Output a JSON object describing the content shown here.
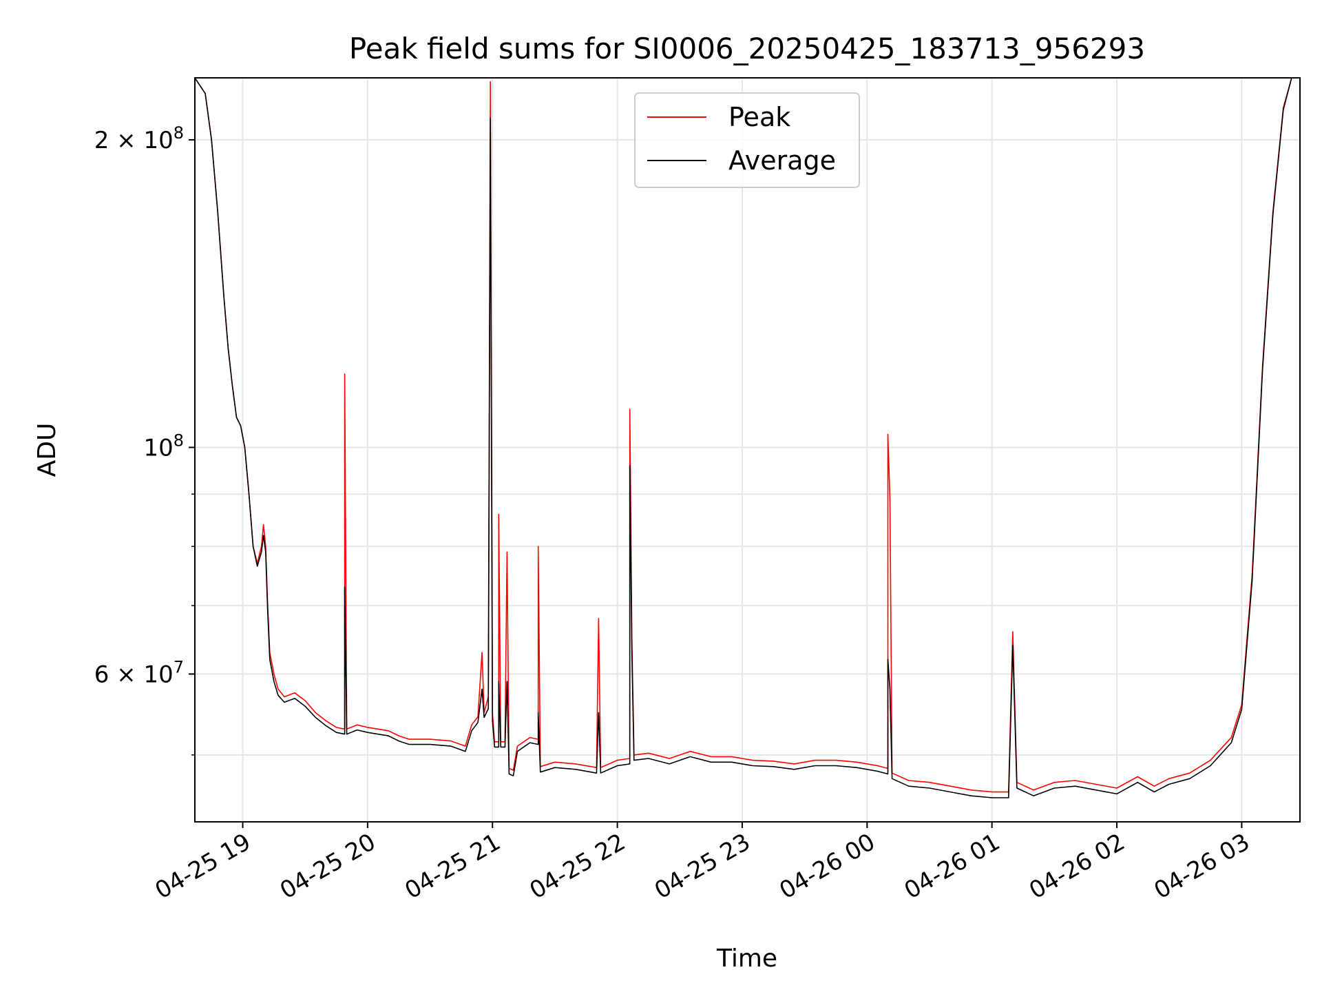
{
  "chart_data": {
    "type": "line",
    "title": "Peak field sums for SI0006_20250425_183713_956293",
    "xlabel": "Time",
    "ylabel": "ADU",
    "x_ticks": [
      "04-25 19",
      "04-25 20",
      "04-25 21",
      "04-25 22",
      "04-25 23",
      "04-26 00",
      "04-26 01",
      "04-26 02",
      "04-26 03"
    ],
    "y_tick_labels": [
      "6 × 10^7",
      "10^8",
      "2 × 10^8"
    ],
    "y_tick_parts": [
      {
        "value": 60000000,
        "mantissa": "6 × ",
        "base": "10",
        "exp": "7"
      },
      {
        "value": 100000000,
        "mantissa": "",
        "base": "10",
        "exp": "8"
      },
      {
        "value": 200000000,
        "mantissa": "2 × ",
        "base": "10",
        "exp": "8"
      }
    ],
    "y_scale": "log",
    "xlim": [
      "2025-04-25 18:37",
      "2025-04-26 03:28"
    ],
    "ylim": [
      43000000,
      230000000
    ],
    "grid": true,
    "legend_position": "top-center",
    "series": [
      {
        "name": "Peak",
        "color": "#ff0000",
        "points": [
          [
            "2025-04-25 18:37",
            230000000
          ],
          [
            "2025-04-25 18:42",
            222000000
          ],
          [
            "2025-04-25 18:45",
            200000000
          ],
          [
            "2025-04-25 18:48",
            170000000
          ],
          [
            "2025-04-25 18:51",
            140000000
          ],
          [
            "2025-04-25 18:53",
            125000000
          ],
          [
            "2025-04-25 18:55",
            115000000
          ],
          [
            "2025-04-25 18:57",
            107000000
          ],
          [
            "2025-04-25 18:59",
            105000000
          ],
          [
            "2025-04-25 19:01",
            100000000
          ],
          [
            "2025-04-25 19:03",
            90000000
          ],
          [
            "2025-04-25 19:05",
            80000000
          ],
          [
            "2025-04-25 19:07",
            77000000
          ],
          [
            "2025-04-25 19:09",
            80000000
          ],
          [
            "2025-04-25 19:10",
            84000000
          ],
          [
            "2025-04-25 19:11",
            80000000
          ],
          [
            "2025-04-25 19:12",
            70000000
          ],
          [
            "2025-04-25 19:13",
            63000000
          ],
          [
            "2025-04-25 19:15",
            60000000
          ],
          [
            "2025-04-25 19:17",
            58000000
          ],
          [
            "2025-04-25 19:20",
            57000000
          ],
          [
            "2025-04-25 19:25",
            57500000
          ],
          [
            "2025-04-25 19:30",
            56500000
          ],
          [
            "2025-04-25 19:35",
            55000000
          ],
          [
            "2025-04-25 19:40",
            54000000
          ],
          [
            "2025-04-25 19:45",
            53200000
          ],
          [
            "2025-04-25 19:49",
            53000000
          ],
          [
            "2025-04-25 19:49",
            118000000
          ],
          [
            "2025-04-25 19:50",
            53000000
          ],
          [
            "2025-04-25 19:55",
            53500000
          ],
          [
            "2025-04-25 20:00",
            53200000
          ],
          [
            "2025-04-25 20:05",
            53000000
          ],
          [
            "2025-04-25 20:10",
            52800000
          ],
          [
            "2025-04-25 20:15",
            52200000
          ],
          [
            "2025-04-25 20:20",
            51800000
          ],
          [
            "2025-04-25 20:30",
            51800000
          ],
          [
            "2025-04-25 20:40",
            51600000
          ],
          [
            "2025-04-25 20:47",
            51000000
          ],
          [
            "2025-04-25 20:50",
            53500000
          ],
          [
            "2025-04-25 20:53",
            54500000
          ],
          [
            "2025-04-25 20:55",
            63000000
          ],
          [
            "2025-04-25 20:56",
            55000000
          ],
          [
            "2025-04-25 20:58",
            57000000
          ],
          [
            "2025-04-25 20:59",
            228000000
          ],
          [
            "2025-04-25 21:00",
            55000000
          ],
          [
            "2025-04-25 21:01",
            51500000
          ],
          [
            "2025-04-25 21:03",
            51500000
          ],
          [
            "2025-04-25 21:03",
            86000000
          ],
          [
            "2025-04-25 21:04",
            51500000
          ],
          [
            "2025-04-25 21:06",
            51500000
          ],
          [
            "2025-04-25 21:07",
            79000000
          ],
          [
            "2025-04-25 21:08",
            48500000
          ],
          [
            "2025-04-25 21:10",
            48300000
          ],
          [
            "2025-04-25 21:12",
            51000000
          ],
          [
            "2025-04-25 21:18",
            52000000
          ],
          [
            "2025-04-25 21:22",
            51800000
          ],
          [
            "2025-04-25 21:22",
            80000000
          ],
          [
            "2025-04-25 21:23",
            48700000
          ],
          [
            "2025-04-25 21:30",
            49200000
          ],
          [
            "2025-04-25 21:40",
            49000000
          ],
          [
            "2025-04-25 21:50",
            48600000
          ],
          [
            "2025-04-25 21:51",
            68000000
          ],
          [
            "2025-04-25 21:52",
            48600000
          ],
          [
            "2025-04-25 22:00",
            49400000
          ],
          [
            "2025-04-25 22:06",
            49600000
          ],
          [
            "2025-04-25 22:06",
            109000000
          ],
          [
            "2025-04-25 22:07",
            65000000
          ],
          [
            "2025-04-25 22:08",
            50000000
          ],
          [
            "2025-04-25 22:15",
            50200000
          ],
          [
            "2025-04-25 22:25",
            49600000
          ],
          [
            "2025-04-25 22:35",
            50400000
          ],
          [
            "2025-04-25 22:45",
            49800000
          ],
          [
            "2025-04-25 22:55",
            49800000
          ],
          [
            "2025-04-25 23:00",
            49600000
          ],
          [
            "2025-04-25 23:05",
            49400000
          ],
          [
            "2025-04-25 23:15",
            49300000
          ],
          [
            "2025-04-25 23:25",
            49000000
          ],
          [
            "2025-04-25 23:35",
            49400000
          ],
          [
            "2025-04-25 23:45",
            49400000
          ],
          [
            "2025-04-25 23:55",
            49200000
          ],
          [
            "2025-04-26 00:05",
            48800000
          ],
          [
            "2025-04-26 00:10",
            48500000
          ],
          [
            "2025-04-26 00:10",
            103000000
          ],
          [
            "2025-04-26 00:11",
            89000000
          ],
          [
            "2025-04-26 00:12",
            48000000
          ],
          [
            "2025-04-26 00:20",
            47200000
          ],
          [
            "2025-04-26 00:30",
            47000000
          ],
          [
            "2025-04-26 00:40",
            46600000
          ],
          [
            "2025-04-26 00:50",
            46200000
          ],
          [
            "2025-04-26 01:00",
            46000000
          ],
          [
            "2025-04-26 01:08",
            46000000
          ],
          [
            "2025-04-26 01:10",
            66000000
          ],
          [
            "2025-04-26 01:12",
            47000000
          ],
          [
            "2025-04-26 01:20",
            46200000
          ],
          [
            "2025-04-26 01:30",
            47000000
          ],
          [
            "2025-04-26 01:40",
            47200000
          ],
          [
            "2025-04-26 01:50",
            46800000
          ],
          [
            "2025-04-26 02:00",
            46400000
          ],
          [
            "2025-04-26 02:10",
            47600000
          ],
          [
            "2025-04-26 02:18",
            46600000
          ],
          [
            "2025-04-26 02:25",
            47400000
          ],
          [
            "2025-04-26 02:35",
            48000000
          ],
          [
            "2025-04-26 02:45",
            49400000
          ],
          [
            "2025-04-26 02:55",
            52000000
          ],
          [
            "2025-04-26 03:00",
            56000000
          ],
          [
            "2025-04-26 03:05",
            75000000
          ],
          [
            "2025-04-26 03:10",
            120000000
          ],
          [
            "2025-04-26 03:15",
            170000000
          ],
          [
            "2025-04-26 03:20",
            215000000
          ],
          [
            "2025-04-26 03:24",
            230000000
          ],
          [
            "2025-04-26 03:28",
            230000000
          ]
        ]
      },
      {
        "name": "Average",
        "color": "#000000",
        "points": [
          [
            "2025-04-25 18:37",
            230000000
          ],
          [
            "2025-04-25 18:42",
            222000000
          ],
          [
            "2025-04-25 18:45",
            200000000
          ],
          [
            "2025-04-25 18:48",
            170000000
          ],
          [
            "2025-04-25 18:51",
            140000000
          ],
          [
            "2025-04-25 18:53",
            125000000
          ],
          [
            "2025-04-25 18:55",
            115000000
          ],
          [
            "2025-04-25 18:57",
            107000000
          ],
          [
            "2025-04-25 18:59",
            105000000
          ],
          [
            "2025-04-25 19:01",
            100000000
          ],
          [
            "2025-04-25 19:03",
            90000000
          ],
          [
            "2025-04-25 19:05",
            80000000
          ],
          [
            "2025-04-25 19:07",
            76500000
          ],
          [
            "2025-04-25 19:09",
            79000000
          ],
          [
            "2025-04-25 19:10",
            82000000
          ],
          [
            "2025-04-25 19:11",
            79000000
          ],
          [
            "2025-04-25 19:12",
            69000000
          ],
          [
            "2025-04-25 19:13",
            62000000
          ],
          [
            "2025-04-25 19:15",
            59000000
          ],
          [
            "2025-04-25 19:17",
            57200000
          ],
          [
            "2025-04-25 19:20",
            56300000
          ],
          [
            "2025-04-25 19:25",
            56800000
          ],
          [
            "2025-04-25 19:30",
            55800000
          ],
          [
            "2025-04-25 19:35",
            54400000
          ],
          [
            "2025-04-25 19:40",
            53400000
          ],
          [
            "2025-04-25 19:45",
            52600000
          ],
          [
            "2025-04-25 19:49",
            52400000
          ],
          [
            "2025-04-25 19:49",
            73000000
          ],
          [
            "2025-04-25 19:50",
            52400000
          ],
          [
            "2025-04-25 19:55",
            52900000
          ],
          [
            "2025-04-25 20:00",
            52600000
          ],
          [
            "2025-04-25 20:05",
            52400000
          ],
          [
            "2025-04-25 20:10",
            52200000
          ],
          [
            "2025-04-25 20:15",
            51600000
          ],
          [
            "2025-04-25 20:20",
            51200000
          ],
          [
            "2025-04-25 20:30",
            51200000
          ],
          [
            "2025-04-25 20:40",
            51000000
          ],
          [
            "2025-04-25 20:47",
            50400000
          ],
          [
            "2025-04-25 20:50",
            52800000
          ],
          [
            "2025-04-25 20:53",
            53800000
          ],
          [
            "2025-04-25 20:55",
            58000000
          ],
          [
            "2025-04-25 20:56",
            54400000
          ],
          [
            "2025-04-25 20:58",
            55500000
          ],
          [
            "2025-04-25 20:59",
            210000000
          ],
          [
            "2025-04-25 21:00",
            54000000
          ],
          [
            "2025-04-25 21:01",
            50900000
          ],
          [
            "2025-04-25 21:03",
            50900000
          ],
          [
            "2025-04-25 21:03",
            59000000
          ],
          [
            "2025-04-25 21:04",
            50900000
          ],
          [
            "2025-04-25 21:06",
            50900000
          ],
          [
            "2025-04-25 21:07",
            59000000
          ],
          [
            "2025-04-25 21:08",
            47900000
          ],
          [
            "2025-04-25 21:10",
            47700000
          ],
          [
            "2025-04-25 21:12",
            50400000
          ],
          [
            "2025-04-25 21:18",
            51400000
          ],
          [
            "2025-04-25 21:22",
            51200000
          ],
          [
            "2025-04-25 21:22",
            55000000
          ],
          [
            "2025-04-25 21:23",
            48100000
          ],
          [
            "2025-04-25 21:30",
            48600000
          ],
          [
            "2025-04-25 21:40",
            48400000
          ],
          [
            "2025-04-25 21:50",
            48000000
          ],
          [
            "2025-04-25 21:51",
            55000000
          ],
          [
            "2025-04-25 21:52",
            48000000
          ],
          [
            "2025-04-25 22:00",
            48800000
          ],
          [
            "2025-04-25 22:06",
            49000000
          ],
          [
            "2025-04-25 22:06",
            96000000
          ],
          [
            "2025-04-25 22:07",
            63000000
          ],
          [
            "2025-04-25 22:08",
            49400000
          ],
          [
            "2025-04-25 22:15",
            49600000
          ],
          [
            "2025-04-25 22:25",
            49000000
          ],
          [
            "2025-04-25 22:35",
            49800000
          ],
          [
            "2025-04-25 22:45",
            49200000
          ],
          [
            "2025-04-25 22:55",
            49200000
          ],
          [
            "2025-04-25 23:00",
            49000000
          ],
          [
            "2025-04-25 23:05",
            48800000
          ],
          [
            "2025-04-25 23:15",
            48700000
          ],
          [
            "2025-04-25 23:25",
            48400000
          ],
          [
            "2025-04-25 23:35",
            48800000
          ],
          [
            "2025-04-25 23:45",
            48800000
          ],
          [
            "2025-04-25 23:55",
            48600000
          ],
          [
            "2025-04-26 00:05",
            48200000
          ],
          [
            "2025-04-26 00:10",
            47900000
          ],
          [
            "2025-04-26 00:10",
            62000000
          ],
          [
            "2025-04-26 00:11",
            58000000
          ],
          [
            "2025-04-26 00:12",
            47400000
          ],
          [
            "2025-04-26 00:20",
            46600000
          ],
          [
            "2025-04-26 00:30",
            46400000
          ],
          [
            "2025-04-26 00:40",
            46000000
          ],
          [
            "2025-04-26 00:50",
            45600000
          ],
          [
            "2025-04-26 01:00",
            45400000
          ],
          [
            "2025-04-26 01:08",
            45400000
          ],
          [
            "2025-04-26 01:10",
            64000000
          ],
          [
            "2025-04-26 01:12",
            46400000
          ],
          [
            "2025-04-26 01:20",
            45600000
          ],
          [
            "2025-04-26 01:30",
            46400000
          ],
          [
            "2025-04-26 01:40",
            46600000
          ],
          [
            "2025-04-26 01:50",
            46200000
          ],
          [
            "2025-04-26 02:00",
            45800000
          ],
          [
            "2025-04-26 02:10",
            47000000
          ],
          [
            "2025-04-26 02:18",
            46000000
          ],
          [
            "2025-04-26 02:25",
            46800000
          ],
          [
            "2025-04-26 02:35",
            47400000
          ],
          [
            "2025-04-26 02:45",
            48800000
          ],
          [
            "2025-04-26 02:55",
            51400000
          ],
          [
            "2025-04-26 03:00",
            55400000
          ],
          [
            "2025-04-26 03:05",
            74000000
          ],
          [
            "2025-04-26 03:10",
            119000000
          ],
          [
            "2025-04-26 03:15",
            169000000
          ],
          [
            "2025-04-26 03:20",
            214000000
          ],
          [
            "2025-04-26 03:24",
            230000000
          ],
          [
            "2025-04-26 03:28",
            230000000
          ]
        ]
      }
    ]
  }
}
